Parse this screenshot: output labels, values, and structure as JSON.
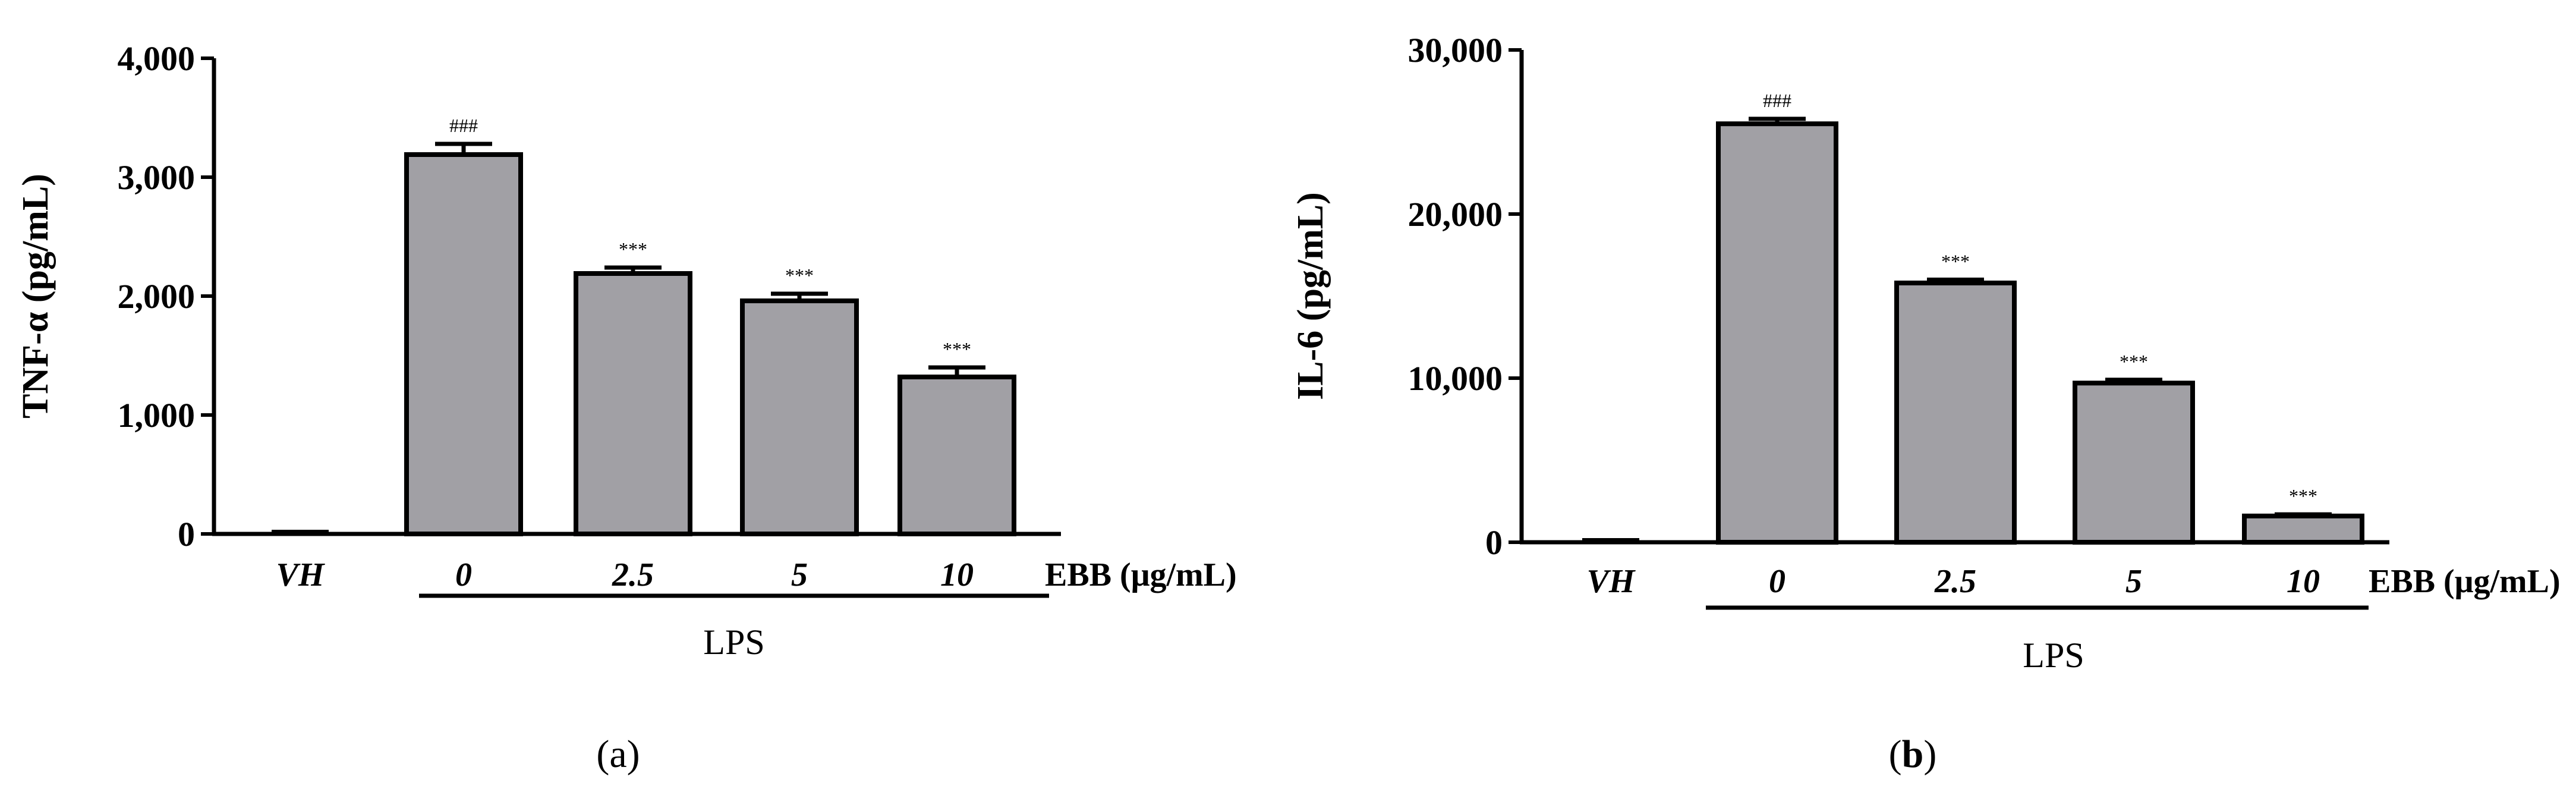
{
  "chart_data": [
    {
      "type": "bar",
      "panel_label": "a",
      "ylabel": "TNF-α (pg/mL)",
      "xlabel": "EBB (μg/mL)",
      "group_label": "LPS",
      "categories": [
        "VH",
        "0",
        "2.5",
        "5",
        "10"
      ],
      "grouped_categories": [
        "0",
        "2.5",
        "5",
        "10"
      ],
      "values": [
        0,
        3190,
        2190,
        1960,
        1320
      ],
      "errors": [
        0,
        90,
        50,
        60,
        80
      ],
      "significance": [
        "",
        "###",
        "***",
        "***",
        "***"
      ],
      "ylim": [
        0,
        4000
      ],
      "yticks": [
        0,
        1000,
        2000,
        3000,
        4000
      ],
      "ytick_labels": [
        "0",
        "1,000",
        "2,000",
        "3,000",
        "4,000"
      ],
      "bar_color": "#a1a0a5",
      "edge_color": "#000000",
      "grid": false,
      "legend": "none"
    },
    {
      "type": "bar",
      "panel_label": "b",
      "ylabel": "IL-6 (pg/mL)",
      "xlabel": "EBB (μg/mL)",
      "group_label": "LPS",
      "categories": [
        "VH",
        "0",
        "2.5",
        "5",
        "10"
      ],
      "grouped_categories": [
        "0",
        "2.5",
        "5",
        "10"
      ],
      "values": [
        0,
        25500,
        15800,
        9700,
        1600
      ],
      "errors": [
        0,
        300,
        200,
        200,
        100
      ],
      "significance": [
        "",
        "###",
        "***",
        "***",
        "***"
      ],
      "ylim": [
        0,
        30000
      ],
      "yticks": [
        0,
        10000,
        20000,
        30000
      ],
      "ytick_labels": [
        "0",
        "10,000",
        "20,000",
        "30,000"
      ],
      "bar_color": "#a1a0a5",
      "edge_color": "#000000",
      "grid": false,
      "legend": "none"
    }
  ]
}
